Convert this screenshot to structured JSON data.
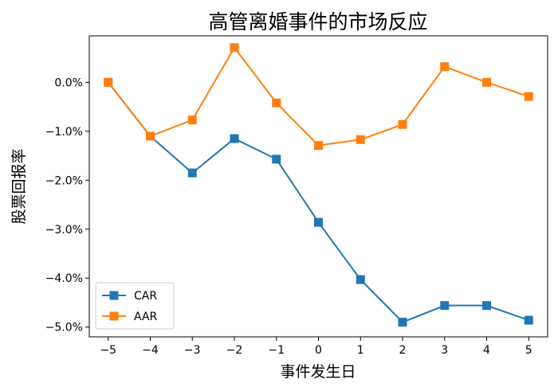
{
  "chart_data": {
    "type": "line",
    "title": "高管离婚事件的市场反应",
    "xlabel": "事件发生日",
    "ylabel": "股票回报率",
    "x": [
      -5,
      -4,
      -3,
      -2,
      -1,
      0,
      1,
      2,
      3,
      4,
      5
    ],
    "x_tick_labels": [
      "−5",
      "−4",
      "−3",
      "−2",
      "−1",
      "0",
      "1",
      "2",
      "3",
      "4",
      "5"
    ],
    "y_ticks": [
      0.0,
      -1.0,
      -2.0,
      -3.0,
      -4.0,
      -5.0
    ],
    "y_tick_labels": [
      "0.0%",
      "−1.0%",
      "−2.0%",
      "−3.0%",
      "−4.0%",
      "−5.0%"
    ],
    "xlim": [
      -5.45,
      5.45
    ],
    "ylim": [
      -5.2,
      0.95
    ],
    "y_unit": "%",
    "grid": false,
    "legend_position": "lower-left",
    "marker": "square",
    "series": [
      {
        "name": "CAR",
        "color": "#1f77b4",
        "values": [
          0.0,
          -1.1,
          -1.85,
          -1.15,
          -1.57,
          -2.86,
          -4.03,
          -4.9,
          -4.56,
          -4.56,
          -4.86
        ]
      },
      {
        "name": "AAR",
        "color": "#ff7f0e",
        "values": [
          0.0,
          -1.1,
          -0.77,
          0.71,
          -0.42,
          -1.29,
          -1.17,
          -0.86,
          0.32,
          0.0,
          -0.29
        ]
      }
    ]
  }
}
